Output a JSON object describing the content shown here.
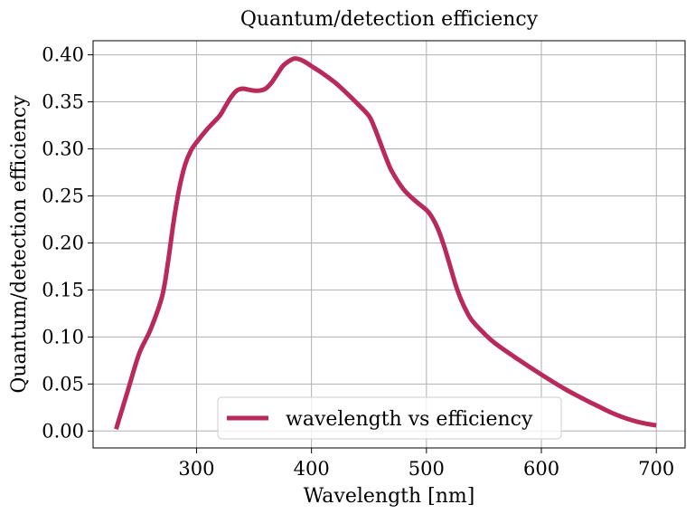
{
  "chart_data": {
    "type": "line",
    "title": "Quantum/detection efficiency",
    "xlabel": "Wavelength [nm]",
    "ylabel": "Quantum/detection efficiency",
    "xlim": [
      210,
      725
    ],
    "ylim": [
      -0.018,
      0.415
    ],
    "xticks": [
      300,
      400,
      500,
      600,
      700
    ],
    "xtick_labels": [
      "300",
      "400",
      "500",
      "600",
      "700"
    ],
    "yticks": [
      0.0,
      0.05,
      0.1,
      0.15,
      0.2,
      0.25,
      0.3,
      0.35,
      0.4
    ],
    "ytick_labels": [
      "0.00",
      "0.05",
      "0.10",
      "0.15",
      "0.20",
      "0.25",
      "0.30",
      "0.35",
      "0.40"
    ],
    "grid": true,
    "legend_position": "bottom-center",
    "series": [
      {
        "name": "wavelength vs efficiency",
        "color": "#b82a58",
        "x": [
          230,
          240,
          250,
          260,
          270,
          275,
          280,
          285,
          290,
          295,
          300,
          310,
          320,
          325,
          330,
          335,
          340,
          345,
          350,
          355,
          360,
          365,
          370,
          375,
          380,
          385,
          390,
          395,
          400,
          410,
          420,
          430,
          440,
          450,
          455,
          460,
          465,
          470,
          480,
          490,
          500,
          505,
          510,
          515,
          520,
          525,
          530,
          535,
          540,
          550,
          560,
          580,
          600,
          620,
          640,
          650,
          660,
          670,
          680,
          690,
          700
        ],
        "y": [
          0.002,
          0.042,
          0.082,
          0.108,
          0.143,
          0.178,
          0.222,
          0.258,
          0.283,
          0.298,
          0.307,
          0.322,
          0.335,
          0.345,
          0.355,
          0.362,
          0.364,
          0.363,
          0.362,
          0.362,
          0.364,
          0.37,
          0.379,
          0.388,
          0.393,
          0.396,
          0.395,
          0.392,
          0.388,
          0.38,
          0.371,
          0.36,
          0.348,
          0.335,
          0.322,
          0.306,
          0.29,
          0.276,
          0.257,
          0.245,
          0.235,
          0.227,
          0.215,
          0.198,
          0.178,
          0.157,
          0.14,
          0.127,
          0.117,
          0.104,
          0.093,
          0.076,
          0.06,
          0.045,
          0.032,
          0.026,
          0.02,
          0.015,
          0.011,
          0.008,
          0.006
        ]
      }
    ]
  }
}
